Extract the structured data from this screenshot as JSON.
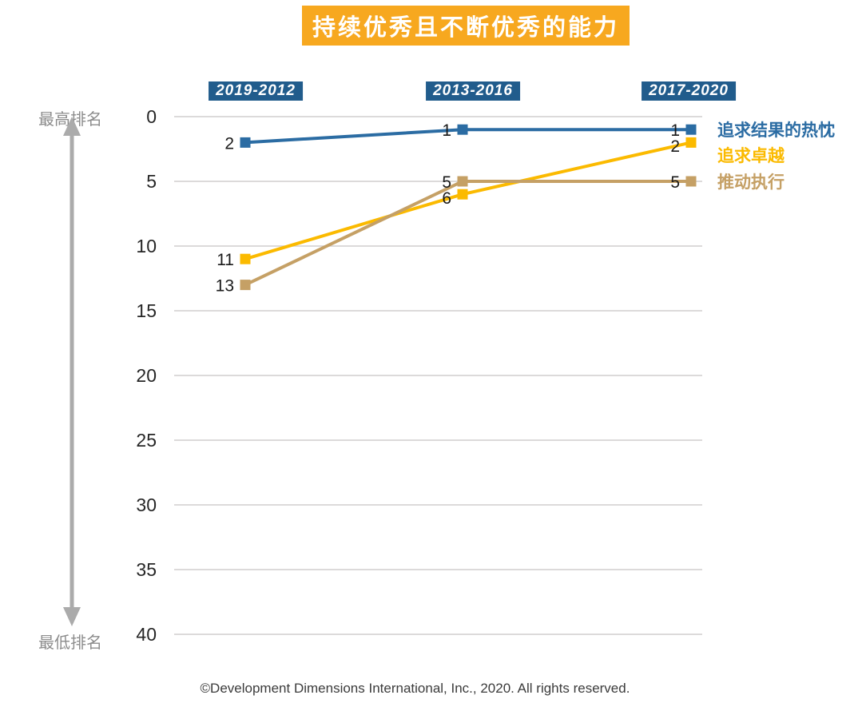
{
  "title": "持续优秀且不断优秀的能力",
  "footer": "©Development Dimensions International, Inc., 2020. All rights reserved.",
  "chart_data": {
    "type": "line",
    "title": "持续优秀且不断优秀的能力",
    "categories": [
      "2019-2012",
      "2013-2016",
      "2017-2020"
    ],
    "series": [
      {
        "name": "追求结果的热忱",
        "values": [
          2,
          1,
          1
        ],
        "color": "#2B6CA3"
      },
      {
        "name": "追求卓越",
        "values": [
          11,
          6,
          2
        ],
        "color": "#FBBA00"
      },
      {
        "name": "推动执行",
        "values": [
          13,
          5,
          5
        ],
        "color": "#C5A065"
      }
    ],
    "y_axis": {
      "ticks": [
        0,
        5,
        10,
        15,
        20,
        25,
        30,
        35,
        40
      ],
      "min": 0,
      "max": 40,
      "inverted": true,
      "top_label": "最高排名",
      "bottom_label": "最低排名"
    },
    "xlabel": "",
    "ylabel": "排名",
    "grid": true,
    "legend_position": "right",
    "data_labels": true
  },
  "colors": {
    "title_bg": "#F7A81F",
    "title_text": "#FFFFFF",
    "period_bg": "#215C8C",
    "period_text": "#FFFFFF",
    "grid": "#D0CECE",
    "tick_text": "#262626",
    "value_label": "#1A1A1A",
    "axis_edge_text": "#8C8C8C",
    "arrow": "#ABABAB",
    "footer_text": "#3B3B3B",
    "series_blue": "#2B6CA3",
    "series_gold": "#FBBA00",
    "series_tan": "#C5A065"
  }
}
